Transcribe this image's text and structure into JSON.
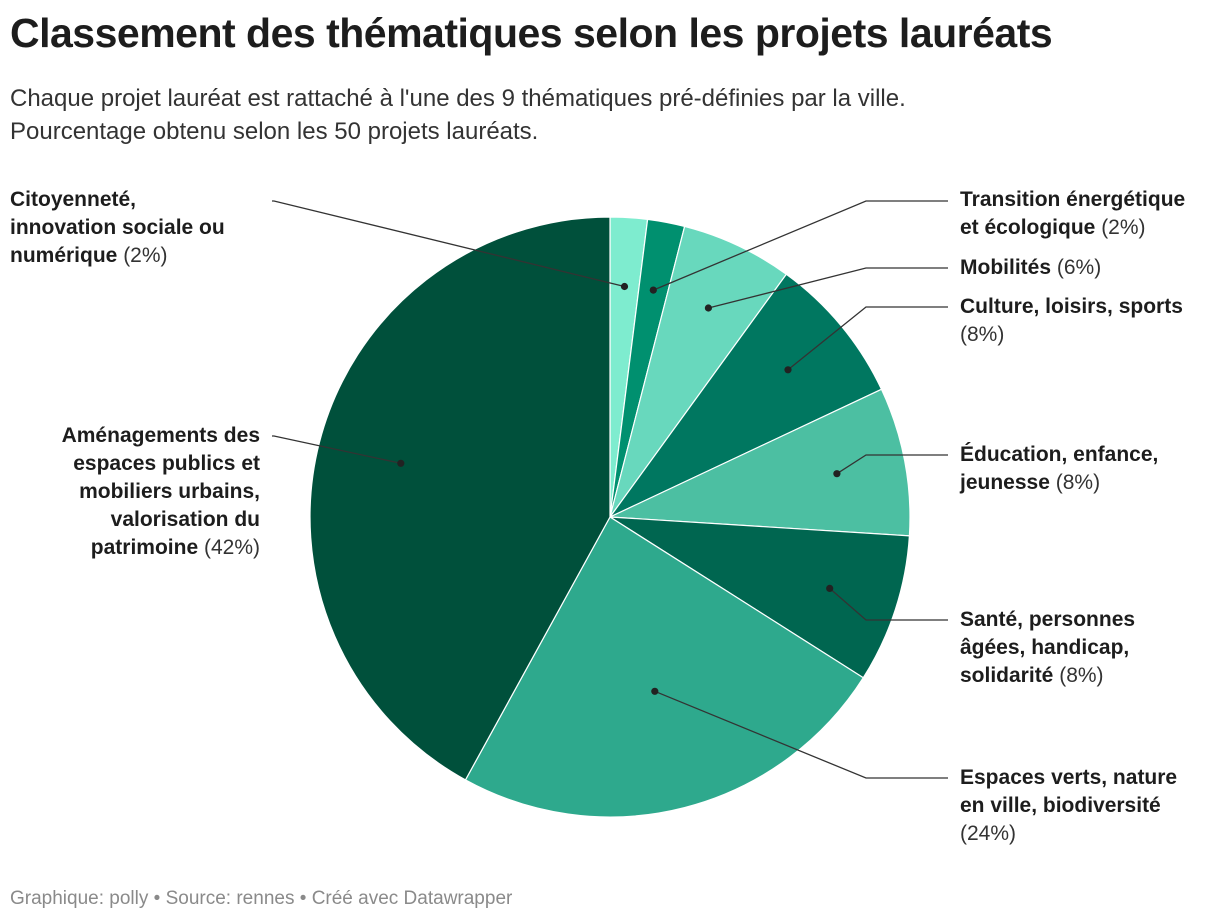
{
  "title": "Classement des thématiques selon les projets lauréats",
  "subtitle_lines": [
    "Chaque projet lauréat est rattaché à l'une des 9 thématiques pré-définies par la ville.",
    "Pourcentage obtenu selon les 50 projets lauréats."
  ],
  "footer": {
    "graphic_label": "Graphique:",
    "graphic_author": "polly",
    "source_label": "Source:",
    "source_name": "rennes",
    "created": "Créé avec Datawrapper",
    "separator": "•"
  },
  "chart_data": {
    "type": "pie",
    "unit": "%",
    "slices": [
      {
        "label": "Citoyenneté, innovation sociale ou numérique",
        "value": 2,
        "color": "#7eeccf"
      },
      {
        "label": "Transition énergétique et écologique",
        "value": 2,
        "color": "#00906f"
      },
      {
        "label": "Mobilités",
        "value": 6,
        "color": "#68d8bd"
      },
      {
        "label": "Culture, loisirs, sports",
        "value": 8,
        "color": "#007760"
      },
      {
        "label": "Éducation, enfance, jeunesse",
        "value": 8,
        "color": "#4cbfa2"
      },
      {
        "label": "Santé, personnes âgées, handicap, solidarité",
        "value": 8,
        "color": "#006650"
      },
      {
        "label": "Espaces verts, nature en ville, biodiversité",
        "value": 24,
        "color": "#2ea98d"
      },
      {
        "label": "Aménagements des espaces publics et mobiliers urbains, valorisation du patrimoine",
        "value": 42,
        "color": "#00503b"
      }
    ]
  },
  "labels": [
    {
      "name_lines": [
        "Citoyenneté,",
        "innovation sociale ou",
        "numérique"
      ],
      "pct": "(2%)"
    },
    {
      "name_lines": [
        "Transition énergétique",
        "et écologique"
      ],
      "pct": "(2%)"
    },
    {
      "name_lines": [
        "Mobilités"
      ],
      "pct": "(6%)"
    },
    {
      "name_lines": [
        "Culture, loisirs, sports"
      ],
      "pct": "(8%)",
      "pct_own_line": true
    },
    {
      "name_lines": [
        "Éducation, enfance,",
        "jeunesse"
      ],
      "pct": "(8%)"
    },
    {
      "name_lines": [
        "Santé, personnes",
        "âgées, handicap,",
        "solidarité"
      ],
      "pct": "(8%)"
    },
    {
      "name_lines": [
        "Espaces verts, nature",
        "en ville, biodiversité"
      ],
      "pct": "(24%)",
      "pct_own_line": true
    },
    {
      "name_lines": [
        "Aménagements des",
        "espaces publics et",
        "mobiliers urbains,",
        "valorisation du",
        "patrimoine"
      ],
      "pct": "(42%)"
    }
  ]
}
